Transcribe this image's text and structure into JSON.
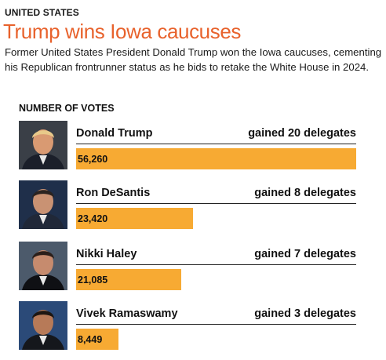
{
  "header": {
    "kicker": "UNITED STATES",
    "headline": "Trump wins Iowa caucuses",
    "subhead": "Former United States President Donald Trump won the Iowa caucuses, cementing his Republican frontrunner status as he bids to retake the White House in 2024."
  },
  "colors": {
    "headline": "#e8622c",
    "bar": "#f7aa33"
  },
  "chart_data": {
    "type": "bar",
    "title": "NUMBER OF VOTES",
    "categories": [
      "Donald Trump",
      "Ron DeSantis",
      "Nikki Haley",
      "Vivek Ramaswamy"
    ],
    "values": [
      56260,
      23420,
      21085,
      8449
    ],
    "value_labels": [
      "56,260",
      "23,420",
      "21,085",
      "8,449"
    ],
    "annotations": [
      "gained 20 delegates",
      "gained 8 delegates",
      "gained 7 delegates",
      "gained 3 delegates"
    ]
  }
}
